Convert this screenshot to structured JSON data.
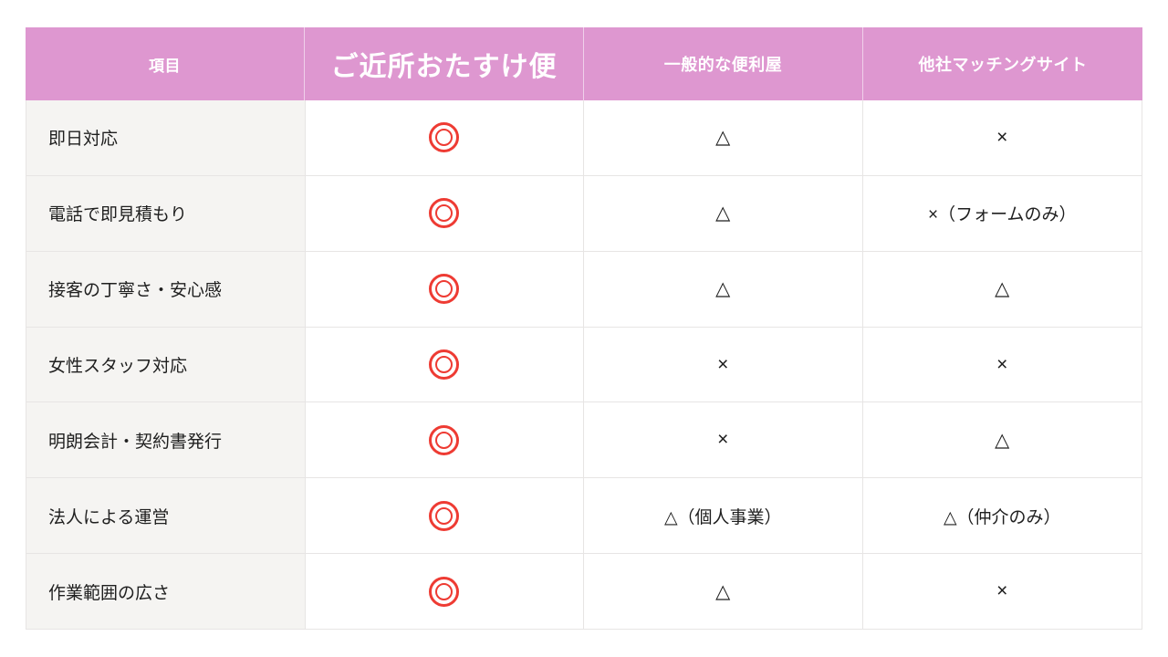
{
  "table": {
    "columns": [
      {
        "label": "項目"
      },
      {
        "label": "ご近所おたすけ便"
      },
      {
        "label": "一般的な便利屋"
      },
      {
        "label": "他社マッチングサイト"
      }
    ],
    "rows": [
      {
        "label": "即日対応",
        "our_service": "◎",
        "general_handyman": "△",
        "matching_site": "×"
      },
      {
        "label": "電話で即見積もり",
        "our_service": "◎",
        "general_handyman": "△",
        "matching_site": "×（フォームのみ）"
      },
      {
        "label": "接客の丁寧さ・安心感",
        "our_service": "◎",
        "general_handyman": "△",
        "matching_site": "△"
      },
      {
        "label": "女性スタッフ対応",
        "our_service": "◎",
        "general_handyman": "×",
        "matching_site": "×"
      },
      {
        "label": "明朗会計・契約書発行",
        "our_service": "◎",
        "general_handyman": "×",
        "matching_site": "△"
      },
      {
        "label": "法人による運営",
        "our_service": "◎",
        "general_handyman": "△（個人事業）",
        "matching_site": "△（仲介のみ）"
      },
      {
        "label": "作業範囲の広さ",
        "our_service": "◎",
        "general_handyman": "△",
        "matching_site": "×"
      }
    ],
    "colors": {
      "header_bg": "#de97d0",
      "header_text": "#ffffff",
      "label_col_bg": "#f5f4f2",
      "border": "#e7e5e4",
      "double_circle_red": "#ee3b33",
      "text": "#1f1f1f"
    }
  }
}
